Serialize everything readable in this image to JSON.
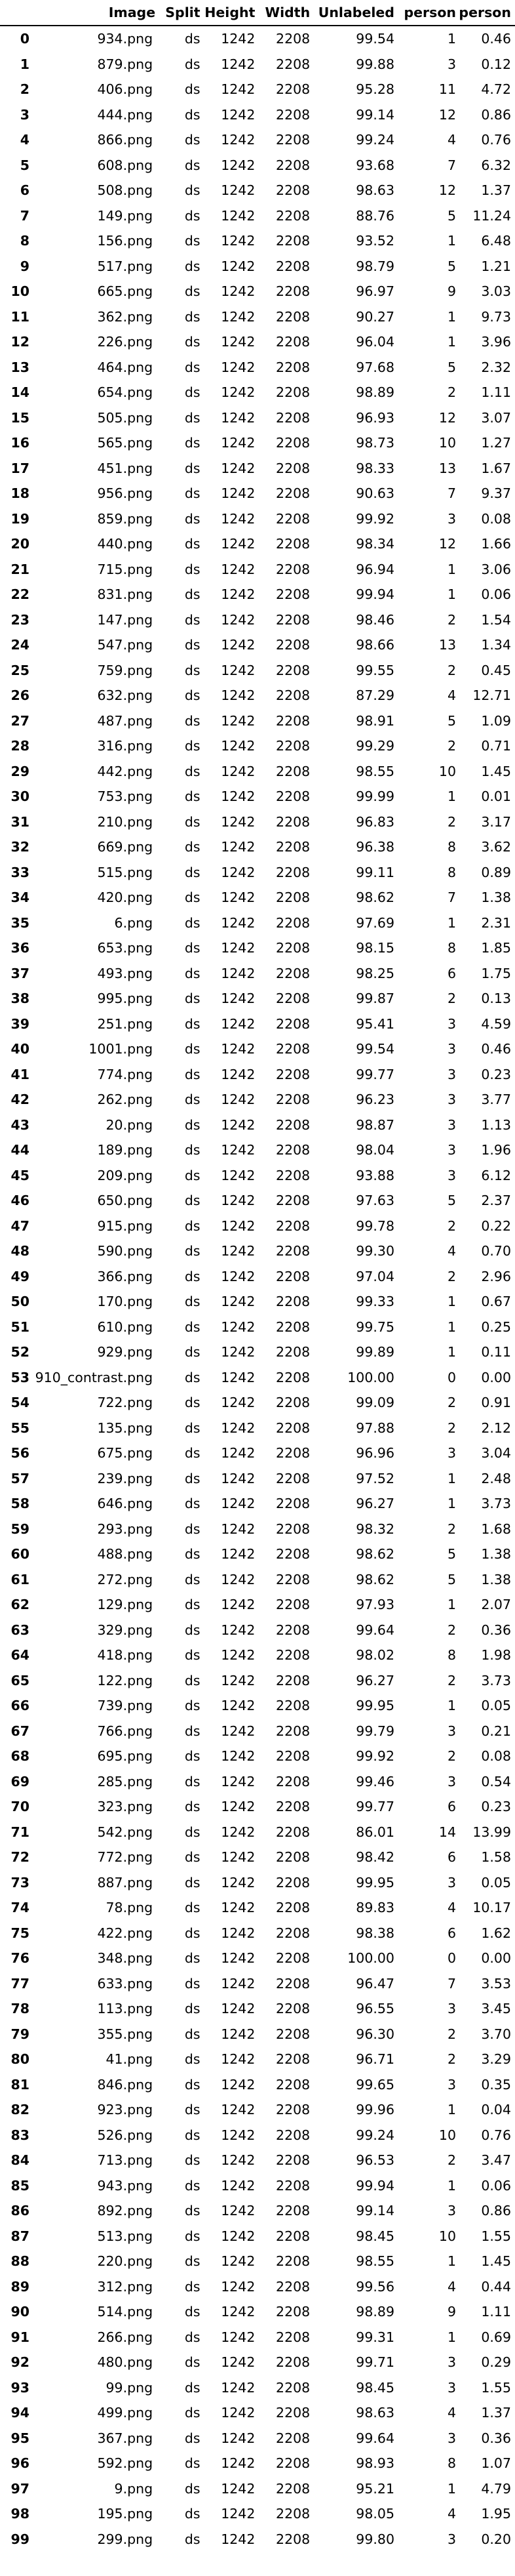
{
  "columns": [
    "",
    "Image",
    "Split",
    "Height",
    "Width",
    "Unlabeled",
    "person",
    "person"
  ],
  "rows": [
    [
      "0",
      "934.png",
      "ds",
      "1242",
      "2208",
      "99.54",
      "1",
      "0.46"
    ],
    [
      "1",
      "879.png",
      "ds",
      "1242",
      "2208",
      "99.88",
      "3",
      "0.12"
    ],
    [
      "2",
      "406.png",
      "ds",
      "1242",
      "2208",
      "95.28",
      "11",
      "4.72"
    ],
    [
      "3",
      "444.png",
      "ds",
      "1242",
      "2208",
      "99.14",
      "12",
      "0.86"
    ],
    [
      "4",
      "866.png",
      "ds",
      "1242",
      "2208",
      "99.24",
      "4",
      "0.76"
    ],
    [
      "5",
      "608.png",
      "ds",
      "1242",
      "2208",
      "93.68",
      "7",
      "6.32"
    ],
    [
      "6",
      "508.png",
      "ds",
      "1242",
      "2208",
      "98.63",
      "12",
      "1.37"
    ],
    [
      "7",
      "149.png",
      "ds",
      "1242",
      "2208",
      "88.76",
      "5",
      "11.24"
    ],
    [
      "8",
      "156.png",
      "ds",
      "1242",
      "2208",
      "93.52",
      "1",
      "6.48"
    ],
    [
      "9",
      "517.png",
      "ds",
      "1242",
      "2208",
      "98.79",
      "5",
      "1.21"
    ],
    [
      "10",
      "665.png",
      "ds",
      "1242",
      "2208",
      "96.97",
      "9",
      "3.03"
    ],
    [
      "11",
      "362.png",
      "ds",
      "1242",
      "2208",
      "90.27",
      "1",
      "9.73"
    ],
    [
      "12",
      "226.png",
      "ds",
      "1242",
      "2208",
      "96.04",
      "1",
      "3.96"
    ],
    [
      "13",
      "464.png",
      "ds",
      "1242",
      "2208",
      "97.68",
      "5",
      "2.32"
    ],
    [
      "14",
      "654.png",
      "ds",
      "1242",
      "2208",
      "98.89",
      "2",
      "1.11"
    ],
    [
      "15",
      "505.png",
      "ds",
      "1242",
      "2208",
      "96.93",
      "12",
      "3.07"
    ],
    [
      "16",
      "565.png",
      "ds",
      "1242",
      "2208",
      "98.73",
      "10",
      "1.27"
    ],
    [
      "17",
      "451.png",
      "ds",
      "1242",
      "2208",
      "98.33",
      "13",
      "1.67"
    ],
    [
      "18",
      "956.png",
      "ds",
      "1242",
      "2208",
      "90.63",
      "7",
      "9.37"
    ],
    [
      "19",
      "859.png",
      "ds",
      "1242",
      "2208",
      "99.92",
      "3",
      "0.08"
    ],
    [
      "20",
      "440.png",
      "ds",
      "1242",
      "2208",
      "98.34",
      "12",
      "1.66"
    ],
    [
      "21",
      "715.png",
      "ds",
      "1242",
      "2208",
      "96.94",
      "1",
      "3.06"
    ],
    [
      "22",
      "831.png",
      "ds",
      "1242",
      "2208",
      "99.94",
      "1",
      "0.06"
    ],
    [
      "23",
      "147.png",
      "ds",
      "1242",
      "2208",
      "98.46",
      "2",
      "1.54"
    ],
    [
      "24",
      "547.png",
      "ds",
      "1242",
      "2208",
      "98.66",
      "13",
      "1.34"
    ],
    [
      "25",
      "759.png",
      "ds",
      "1242",
      "2208",
      "99.55",
      "2",
      "0.45"
    ],
    [
      "26",
      "632.png",
      "ds",
      "1242",
      "2208",
      "87.29",
      "4",
      "12.71"
    ],
    [
      "27",
      "487.png",
      "ds",
      "1242",
      "2208",
      "98.91",
      "5",
      "1.09"
    ],
    [
      "28",
      "316.png",
      "ds",
      "1242",
      "2208",
      "99.29",
      "2",
      "0.71"
    ],
    [
      "29",
      "442.png",
      "ds",
      "1242",
      "2208",
      "98.55",
      "10",
      "1.45"
    ],
    [
      "30",
      "753.png",
      "ds",
      "1242",
      "2208",
      "99.99",
      "1",
      "0.01"
    ],
    [
      "31",
      "210.png",
      "ds",
      "1242",
      "2208",
      "96.83",
      "2",
      "3.17"
    ],
    [
      "32",
      "669.png",
      "ds",
      "1242",
      "2208",
      "96.38",
      "8",
      "3.62"
    ],
    [
      "33",
      "515.png",
      "ds",
      "1242",
      "2208",
      "99.11",
      "8",
      "0.89"
    ],
    [
      "34",
      "420.png",
      "ds",
      "1242",
      "2208",
      "98.62",
      "7",
      "1.38"
    ],
    [
      "35",
      "6.png",
      "ds",
      "1242",
      "2208",
      "97.69",
      "1",
      "2.31"
    ],
    [
      "36",
      "653.png",
      "ds",
      "1242",
      "2208",
      "98.15",
      "8",
      "1.85"
    ],
    [
      "37",
      "493.png",
      "ds",
      "1242",
      "2208",
      "98.25",
      "6",
      "1.75"
    ],
    [
      "38",
      "995.png",
      "ds",
      "1242",
      "2208",
      "99.87",
      "2",
      "0.13"
    ],
    [
      "39",
      "251.png",
      "ds",
      "1242",
      "2208",
      "95.41",
      "3",
      "4.59"
    ],
    [
      "40",
      "1001.png",
      "ds",
      "1242",
      "2208",
      "99.54",
      "3",
      "0.46"
    ],
    [
      "41",
      "774.png",
      "ds",
      "1242",
      "2208",
      "99.77",
      "3",
      "0.23"
    ],
    [
      "42",
      "262.png",
      "ds",
      "1242",
      "2208",
      "96.23",
      "3",
      "3.77"
    ],
    [
      "43",
      "20.png",
      "ds",
      "1242",
      "2208",
      "98.87",
      "3",
      "1.13"
    ],
    [
      "44",
      "189.png",
      "ds",
      "1242",
      "2208",
      "98.04",
      "3",
      "1.96"
    ],
    [
      "45",
      "209.png",
      "ds",
      "1242",
      "2208",
      "93.88",
      "3",
      "6.12"
    ],
    [
      "46",
      "650.png",
      "ds",
      "1242",
      "2208",
      "97.63",
      "5",
      "2.37"
    ],
    [
      "47",
      "915.png",
      "ds",
      "1242",
      "2208",
      "99.78",
      "2",
      "0.22"
    ],
    [
      "48",
      "590.png",
      "ds",
      "1242",
      "2208",
      "99.30",
      "4",
      "0.70"
    ],
    [
      "49",
      "366.png",
      "ds",
      "1242",
      "2208",
      "97.04",
      "2",
      "2.96"
    ],
    [
      "50",
      "170.png",
      "ds",
      "1242",
      "2208",
      "99.33",
      "1",
      "0.67"
    ],
    [
      "51",
      "610.png",
      "ds",
      "1242",
      "2208",
      "99.75",
      "1",
      "0.25"
    ],
    [
      "52",
      "929.png",
      "ds",
      "1242",
      "2208",
      "99.89",
      "1",
      "0.11"
    ],
    [
      "53",
      "910_contrast.png",
      "ds",
      "1242",
      "2208",
      "100.00",
      "0",
      "0.00"
    ],
    [
      "54",
      "722.png",
      "ds",
      "1242",
      "2208",
      "99.09",
      "2",
      "0.91"
    ],
    [
      "55",
      "135.png",
      "ds",
      "1242",
      "2208",
      "97.88",
      "2",
      "2.12"
    ],
    [
      "56",
      "675.png",
      "ds",
      "1242",
      "2208",
      "96.96",
      "3",
      "3.04"
    ],
    [
      "57",
      "239.png",
      "ds",
      "1242",
      "2208",
      "97.52",
      "1",
      "2.48"
    ],
    [
      "58",
      "646.png",
      "ds",
      "1242",
      "2208",
      "96.27",
      "1",
      "3.73"
    ],
    [
      "59",
      "293.png",
      "ds",
      "1242",
      "2208",
      "98.32",
      "2",
      "1.68"
    ],
    [
      "60",
      "488.png",
      "ds",
      "1242",
      "2208",
      "98.62",
      "5",
      "1.38"
    ],
    [
      "61",
      "272.png",
      "ds",
      "1242",
      "2208",
      "98.62",
      "5",
      "1.38"
    ],
    [
      "62",
      "129.png",
      "ds",
      "1242",
      "2208",
      "97.93",
      "1",
      "2.07"
    ],
    [
      "63",
      "329.png",
      "ds",
      "1242",
      "2208",
      "99.64",
      "2",
      "0.36"
    ],
    [
      "64",
      "418.png",
      "ds",
      "1242",
      "2208",
      "98.02",
      "8",
      "1.98"
    ],
    [
      "65",
      "122.png",
      "ds",
      "1242",
      "2208",
      "96.27",
      "2",
      "3.73"
    ],
    [
      "66",
      "739.png",
      "ds",
      "1242",
      "2208",
      "99.95",
      "1",
      "0.05"
    ],
    [
      "67",
      "766.png",
      "ds",
      "1242",
      "2208",
      "99.79",
      "3",
      "0.21"
    ],
    [
      "68",
      "695.png",
      "ds",
      "1242",
      "2208",
      "99.92",
      "2",
      "0.08"
    ],
    [
      "69",
      "285.png",
      "ds",
      "1242",
      "2208",
      "99.46",
      "3",
      "0.54"
    ],
    [
      "70",
      "323.png",
      "ds",
      "1242",
      "2208",
      "99.77",
      "6",
      "0.23"
    ],
    [
      "71",
      "542.png",
      "ds",
      "1242",
      "2208",
      "86.01",
      "14",
      "13.99"
    ],
    [
      "72",
      "772.png",
      "ds",
      "1242",
      "2208",
      "98.42",
      "6",
      "1.58"
    ],
    [
      "73",
      "887.png",
      "ds",
      "1242",
      "2208",
      "99.95",
      "3",
      "0.05"
    ],
    [
      "74",
      "78.png",
      "ds",
      "1242",
      "2208",
      "89.83",
      "4",
      "10.17"
    ],
    [
      "75",
      "422.png",
      "ds",
      "1242",
      "2208",
      "98.38",
      "6",
      "1.62"
    ],
    [
      "76",
      "348.png",
      "ds",
      "1242",
      "2208",
      "100.00",
      "0",
      "0.00"
    ],
    [
      "77",
      "633.png",
      "ds",
      "1242",
      "2208",
      "96.47",
      "7",
      "3.53"
    ],
    [
      "78",
      "113.png",
      "ds",
      "1242",
      "2208",
      "96.55",
      "3",
      "3.45"
    ],
    [
      "79",
      "355.png",
      "ds",
      "1242",
      "2208",
      "96.30",
      "2",
      "3.70"
    ],
    [
      "80",
      "41.png",
      "ds",
      "1242",
      "2208",
      "96.71",
      "2",
      "3.29"
    ],
    [
      "81",
      "846.png",
      "ds",
      "1242",
      "2208",
      "99.65",
      "3",
      "0.35"
    ],
    [
      "82",
      "923.png",
      "ds",
      "1242",
      "2208",
      "99.96",
      "1",
      "0.04"
    ],
    [
      "83",
      "526.png",
      "ds",
      "1242",
      "2208",
      "99.24",
      "10",
      "0.76"
    ],
    [
      "84",
      "713.png",
      "ds",
      "1242",
      "2208",
      "96.53",
      "2",
      "3.47"
    ],
    [
      "85",
      "943.png",
      "ds",
      "1242",
      "2208",
      "99.94",
      "1",
      "0.06"
    ],
    [
      "86",
      "892.png",
      "ds",
      "1242",
      "2208",
      "99.14",
      "3",
      "0.86"
    ],
    [
      "87",
      "513.png",
      "ds",
      "1242",
      "2208",
      "98.45",
      "10",
      "1.55"
    ],
    [
      "88",
      "220.png",
      "ds",
      "1242",
      "2208",
      "98.55",
      "1",
      "1.45"
    ],
    [
      "89",
      "312.png",
      "ds",
      "1242",
      "2208",
      "99.56",
      "4",
      "0.44"
    ],
    [
      "90",
      "514.png",
      "ds",
      "1242",
      "2208",
      "98.89",
      "9",
      "1.11"
    ],
    [
      "91",
      "266.png",
      "ds",
      "1242",
      "2208",
      "99.31",
      "1",
      "0.69"
    ],
    [
      "92",
      "480.png",
      "ds",
      "1242",
      "2208",
      "99.71",
      "3",
      "0.29"
    ],
    [
      "93",
      "99.png",
      "ds",
      "1242",
      "2208",
      "98.45",
      "3",
      "1.55"
    ],
    [
      "94",
      "499.png",
      "ds",
      "1242",
      "2208",
      "98.63",
      "4",
      "1.37"
    ],
    [
      "95",
      "367.png",
      "ds",
      "1242",
      "2208",
      "99.64",
      "3",
      "0.36"
    ],
    [
      "96",
      "592.png",
      "ds",
      "1242",
      "2208",
      "98.93",
      "8",
      "1.07"
    ],
    [
      "97",
      "9.png",
      "ds",
      "1242",
      "2208",
      "95.21",
      "1",
      "4.79"
    ],
    [
      "98",
      "195.png",
      "ds",
      "1242",
      "2208",
      "98.05",
      "4",
      "1.95"
    ],
    [
      "99",
      "299.png",
      "ds",
      "1242",
      "2208",
      "99.80",
      "3",
      "0.20"
    ]
  ]
}
